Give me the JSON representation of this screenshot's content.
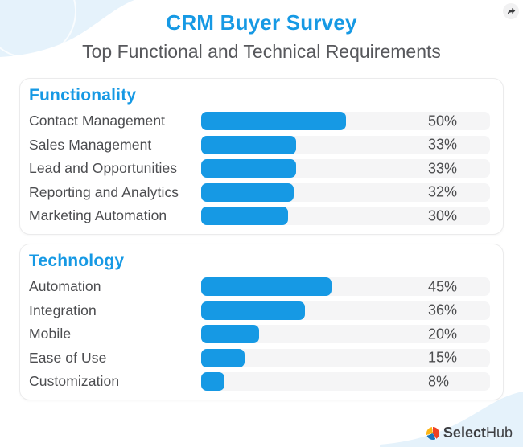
{
  "header": {
    "title": "CRM Buyer Survey",
    "subtitle": "Top Functional and Technical Requirements"
  },
  "chart_data": [
    {
      "type": "bar",
      "orientation": "horizontal",
      "title": "Functionality",
      "categories": [
        "Contact Management",
        "Sales Management",
        "Lead and Opportunities",
        "Reporting and Analytics",
        "Marketing Automation"
      ],
      "values": [
        50,
        33,
        33,
        32,
        30
      ],
      "value_labels": [
        "50%",
        "33%",
        "33%",
        "32%",
        "30%"
      ],
      "unit": "percent",
      "xlim": [
        0,
        100
      ],
      "grid": false,
      "legend": false
    },
    {
      "type": "bar",
      "orientation": "horizontal",
      "title": "Technology",
      "categories": [
        "Automation",
        "Integration",
        "Mobile",
        "Ease of Use",
        "Customization"
      ],
      "values": [
        45,
        36,
        20,
        15,
        8
      ],
      "value_labels": [
        "45%",
        "36%",
        "20%",
        "15%",
        "8%"
      ],
      "unit": "percent",
      "xlim": [
        0,
        100
      ],
      "grid": false,
      "legend": false
    }
  ],
  "footer": {
    "brand_bold": "Select",
    "brand_regular": "Hub"
  },
  "icons": {
    "share": "curved-share-arrow",
    "brand_mark": "selecthub-tricolor-pie"
  },
  "colors": {
    "accent_blue": "#1699E4",
    "bar_blue": "#1699E4",
    "track_gray": "#F5F5F6",
    "text_dark": "#4C4D50",
    "subtitle_gray": "#57585C",
    "deco_blue": "#E5F2FB",
    "brand_red": "#EF4123",
    "brand_yellow": "#FDB515",
    "brand_dark_blue": "#1B75BB"
  }
}
